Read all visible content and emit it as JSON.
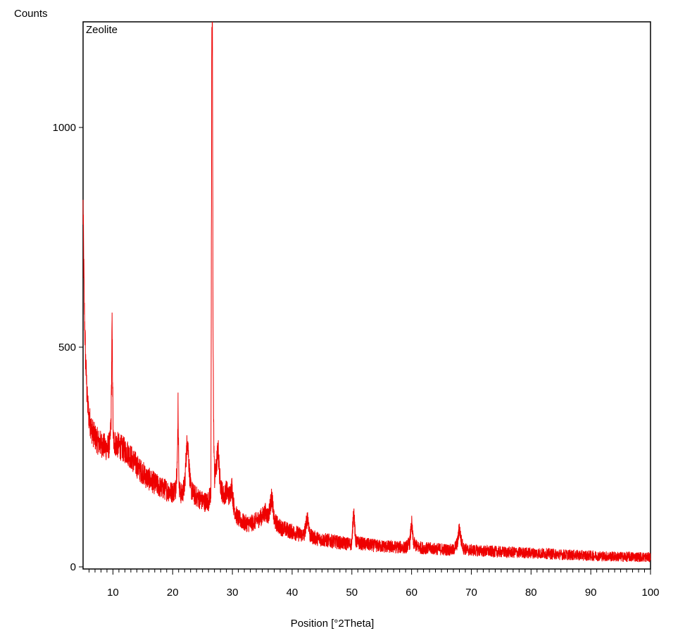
{
  "chart_data": {
    "type": "line",
    "ylabel": "Counts",
    "xlabel": "Position [°2Theta]",
    "annotation": "Zeolite",
    "xlim": [
      5,
      100
    ],
    "ylim": [
      0,
      1240
    ],
    "x_ticks": [
      10,
      20,
      30,
      40,
      50,
      60,
      70,
      80,
      90,
      100
    ],
    "x_tick_labels": [
      "10",
      "20",
      "30",
      "40",
      "50",
      "60",
      "70",
      "80",
      "90",
      "100"
    ],
    "y_ticks": [
      0,
      500,
      1000
    ],
    "y_tick_labels": [
      "0",
      "500",
      "1000"
    ],
    "grid": false,
    "line_color": "#ee0000",
    "series": [
      {
        "x": [
          5.0,
          5.2,
          5.4,
          5.7,
          6.0,
          6.5,
          7.0,
          7.5,
          8.0,
          8.5,
          9.0,
          9.5,
          9.7,
          9.85,
          9.95,
          10.05,
          10.2,
          10.5,
          11.0,
          11.5,
          12.0,
          12.5,
          13.0,
          13.5,
          14.0,
          14.5,
          15.0,
          15.5,
          16.0,
          16.5,
          17.0,
          17.5,
          18.0,
          18.5,
          19.0,
          19.5,
          20.0,
          20.5,
          20.8,
          20.9,
          21.0,
          21.1,
          21.3,
          21.6,
          22.0,
          22.3,
          22.5,
          22.7,
          23.0,
          23.5,
          24.0,
          24.5,
          25.0,
          25.5,
          26.0,
          26.4,
          26.55,
          26.65,
          26.75,
          26.85,
          27.0,
          27.3,
          27.6,
          27.9,
          28.2,
          28.6,
          29.0,
          29.5,
          29.9,
          30.2,
          30.6,
          31.0,
          31.5,
          32.0,
          33.0,
          34.0,
          35.0,
          35.5,
          36.0,
          36.6,
          37.0,
          38.0,
          39.0,
          40.0,
          41.0,
          42.0,
          42.6,
          43.0,
          44.0,
          45.0,
          46.0,
          47.0,
          48.0,
          49.0,
          50.0,
          50.3,
          50.6,
          51.0,
          52.0,
          53.0,
          54.0,
          55.0,
          56.0,
          57.0,
          58.0,
          59.0,
          59.7,
          60.0,
          60.3,
          61.0,
          62.0,
          63.0,
          64.0,
          65.0,
          66.0,
          67.0,
          67.7,
          68.0,
          68.3,
          68.7,
          69.5,
          70.0,
          72.0,
          73.5,
          75.0,
          77.0,
          79.0,
          81.0,
          83.0,
          85.0,
          87.0,
          89.0,
          91.0,
          93.0,
          95.0,
          97.0,
          100.0
        ],
        "y": [
          820,
          600,
          480,
          380,
          340,
          310,
          295,
          285,
          280,
          275,
          270,
          280,
          340,
          555,
          420,
          290,
          285,
          280,
          275,
          270,
          265,
          260,
          250,
          240,
          230,
          220,
          215,
          205,
          200,
          195,
          190,
          185,
          180,
          178,
          175,
          172,
          170,
          178,
          250,
          380,
          250,
          175,
          168,
          165,
          185,
          260,
          295,
          240,
          180,
          165,
          160,
          155,
          150,
          148,
          150,
          170,
          1175,
          1240,
          600,
          330,
          200,
          225,
          270,
          200,
          175,
          160,
          175,
          160,
          185,
          140,
          120,
          110,
          105,
          100,
          98,
          105,
          115,
          125,
          115,
          160,
          105,
          90,
          85,
          80,
          75,
          72,
          115,
          70,
          65,
          62,
          60,
          58,
          55,
          53,
          52,
          135,
          60,
          55,
          52,
          50,
          48,
          47,
          46,
          45,
          45,
          44,
          55,
          100,
          55,
          45,
          43,
          42,
          41,
          40,
          39,
          38,
          55,
          90,
          60,
          42,
          38,
          38,
          36,
          35,
          34,
          33,
          32,
          31,
          30,
          28,
          27,
          26,
          25,
          24,
          23,
          23,
          22
        ]
      }
    ]
  }
}
